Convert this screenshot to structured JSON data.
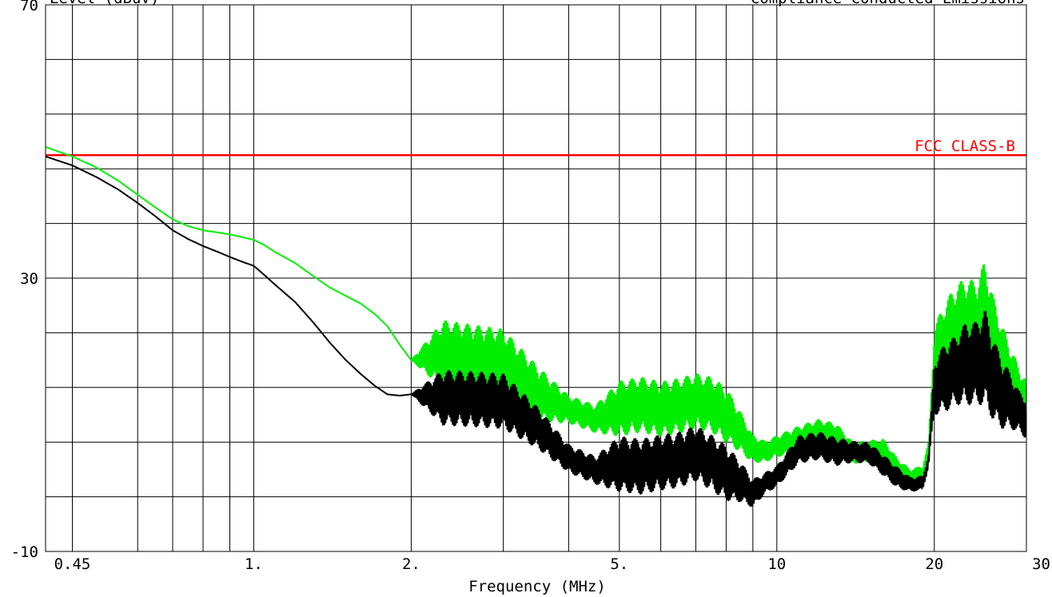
{
  "chart_data": {
    "type": "line",
    "title_left": "Level (dBuV)",
    "title_right": "Compliance Conducted Emissions",
    "xlabel": "Frequency (MHz)",
    "ylabel": "",
    "x_scale": "log",
    "xlim": [
      0.4,
      30
    ],
    "ylim": [
      -10,
      70
    ],
    "x_ticks": [
      {
        "value": 0.45,
        "label": "0.45"
      },
      {
        "value": 1,
        "label": "1."
      },
      {
        "value": 2,
        "label": "2."
      },
      {
        "value": 5,
        "label": "5."
      },
      {
        "value": 10,
        "label": "10"
      },
      {
        "value": 20,
        "label": "20"
      },
      {
        "value": 30,
        "label": "30"
      }
    ],
    "x_gridlines": [
      0.45,
      0.6,
      0.7,
      0.8,
      0.9,
      1,
      2,
      3,
      4,
      5,
      6,
      7,
      8,
      9,
      10,
      20,
      30
    ],
    "y_ticks": [
      {
        "value": 70,
        "label": "70"
      },
      {
        "value": 30,
        "label": "30"
      },
      {
        "value": -10,
        "label": "-10"
      }
    ],
    "y_gridlines": [
      -10,
      -2,
      6,
      14,
      22,
      30,
      38,
      46,
      54,
      62,
      70
    ],
    "grid": true,
    "limit_line": {
      "label": "FCC CLASS-B",
      "value": 48,
      "color": "#ff0000"
    },
    "series": [
      {
        "color": "#00ee00",
        "x": [
          0.4,
          0.45,
          0.5,
          0.55,
          0.6,
          0.65,
          0.7,
          0.75,
          0.8,
          0.85,
          0.9,
          0.95,
          1.0,
          1.05,
          1.1,
          1.2,
          1.3,
          1.4,
          1.5,
          1.6,
          1.7,
          1.8,
          1.9,
          2.0,
          2.3,
          2.6,
          3.0,
          3.5,
          4.0,
          4.5,
          5.0,
          5.5,
          6.0,
          6.5,
          7.0,
          7.5,
          8.0,
          8.5,
          9.0,
          9.5,
          10,
          11,
          12,
          13,
          14,
          15,
          16,
          17,
          18,
          19,
          19.5,
          20,
          21,
          22,
          23,
          24,
          25,
          26,
          27,
          28,
          29,
          30
        ],
        "y": [
          49.2,
          47.8,
          46.2,
          44.3,
          42.2,
          40.3,
          38.6,
          37.6,
          37.0,
          36.7,
          36.4,
          36.0,
          35.6,
          34.8,
          33.8,
          32.2,
          30.3,
          28.6,
          27.4,
          26.3,
          24.8,
          23.0,
          20.3,
          18.0,
          18.8,
          18.2,
          17.5,
          13.0,
          10.8,
          9.4,
          10.9,
          11.5,
          10.8,
          11.3,
          12.0,
          11.5,
          10.0,
          7.6,
          5.0,
          4.6,
          5.4,
          6.3,
          7.3,
          6.7,
          4.4,
          4.7,
          4.9,
          2.1,
          1.0,
          1.5,
          5.0,
          18.0,
          20.5,
          22.0,
          23.0,
          22.5,
          24.5,
          20.0,
          17.0,
          15.0,
          13.0,
          12.0
        ],
        "noise": [
          0,
          0,
          0,
          0,
          0,
          0,
          0,
          0,
          0,
          0,
          0,
          0,
          0,
          0,
          0,
          0,
          0,
          0,
          0,
          0,
          0,
          0,
          0,
          0,
          5,
          5,
          5,
          4,
          2,
          2,
          4,
          4,
          4,
          4,
          4,
          4,
          4,
          3,
          2,
          1.5,
          1.5,
          2,
          2,
          2,
          1.5,
          1.5,
          1.5,
          1.5,
          1,
          1,
          1,
          5,
          6,
          7,
          7,
          7,
          8,
          7,
          6,
          5,
          4,
          3
        ]
      },
      {
        "color": "#000000",
        "x": [
          0.4,
          0.45,
          0.5,
          0.55,
          0.6,
          0.65,
          0.7,
          0.75,
          0.8,
          0.85,
          0.9,
          0.95,
          1.0,
          1.05,
          1.1,
          1.2,
          1.3,
          1.4,
          1.5,
          1.6,
          1.7,
          1.8,
          1.9,
          2.0,
          2.3,
          2.6,
          3.0,
          3.5,
          4.0,
          4.5,
          5.0,
          5.5,
          6.0,
          6.5,
          7.0,
          7.5,
          8.0,
          8.5,
          9.0,
          9.5,
          10,
          11,
          12,
          13,
          14,
          15,
          16,
          17,
          18,
          19,
          19.5,
          20,
          21,
          22,
          23,
          24,
          25,
          26,
          27,
          28,
          29,
          30
        ],
        "y": [
          47.8,
          46.5,
          44.8,
          43.0,
          41.0,
          39.0,
          37.0,
          35.7,
          34.7,
          33.9,
          33.1,
          32.4,
          31.8,
          30.4,
          29.0,
          26.5,
          23.5,
          20.5,
          18.0,
          16.0,
          14.3,
          13.0,
          12.8,
          13.0,
          12.5,
          12.3,
          12.0,
          8.0,
          3.6,
          1.9,
          2.8,
          2.4,
          3.0,
          3.4,
          4.4,
          3.0,
          1.5,
          0.3,
          -1.5,
          0.0,
          1.0,
          4.9,
          5.5,
          4.6,
          4.6,
          4.4,
          2.6,
          0.8,
          -0.2,
          0.0,
          3.3,
          14.0,
          15.5,
          16.5,
          17.5,
          17.5,
          18.5,
          15.0,
          13.0,
          12.0,
          10.5,
          9.5
        ],
        "noise": [
          0,
          0,
          0,
          0,
          0,
          0,
          0,
          0,
          0,
          0,
          0,
          0,
          0,
          0,
          0,
          0,
          0,
          0,
          0,
          0,
          0,
          0,
          0,
          0,
          4,
          4,
          4,
          3,
          2,
          2,
          4,
          4,
          4,
          4,
          4,
          4,
          4,
          3,
          2,
          1.5,
          1.5,
          2,
          2,
          2,
          1.5,
          1.5,
          1.5,
          1.5,
          1,
          1,
          1,
          4,
          5,
          5,
          6,
          6,
          7,
          6,
          5,
          4,
          3,
          3
        ]
      }
    ]
  }
}
